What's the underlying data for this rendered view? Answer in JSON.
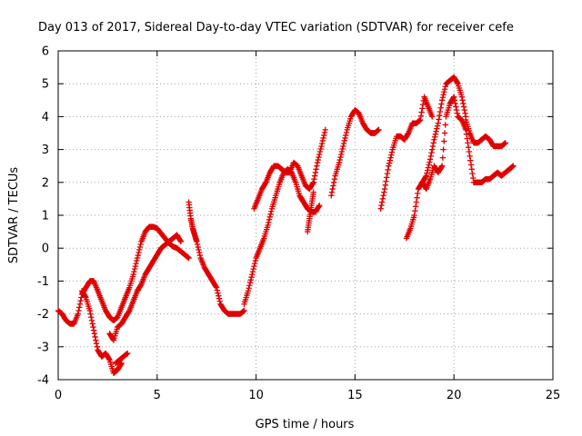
{
  "chart_data": {
    "type": "scatter",
    "title": "Day 013 of 2017, Sidereal Day-to-day VTEC variation (SDTVAR) for receiver cefe",
    "xlabel": "GPS time / hours",
    "ylabel": "SDTVAR / TECUs",
    "xlim": [
      0,
      25
    ],
    "ylim": [
      -4,
      6
    ],
    "x_ticks": [
      "0",
      "5",
      "10",
      "15",
      "20",
      "25"
    ],
    "y_ticks": [
      "-4",
      "-3",
      "-2",
      "-1",
      "0",
      "1",
      "2",
      "3",
      "4",
      "5",
      "6"
    ],
    "grid": true,
    "marker": "plus",
    "color": "#e00000",
    "series": [
      {
        "x": [
          0.0,
          0.2,
          0.4,
          0.6,
          0.8,
          1.0,
          1.2,
          1.4,
          1.6,
          1.8,
          2.0,
          2.2,
          2.4,
          2.6,
          2.8,
          3.0,
          3.2,
          3.4,
          3.6,
          3.8,
          4.0,
          4.2,
          4.4,
          4.6,
          4.8,
          5.0,
          5.2,
          5.4,
          5.6,
          5.8,
          6.0,
          6.2,
          6.4,
          6.6
        ],
        "y": [
          -1.9,
          -2.0,
          -2.2,
          -2.3,
          -2.3,
          -2.0,
          -1.4,
          -1.2,
          -1.0,
          -1.0,
          -1.3,
          -1.6,
          -1.9,
          -2.1,
          -2.2,
          -2.1,
          -1.8,
          -1.5,
          -1.2,
          -0.8,
          -0.3,
          0.2,
          0.5,
          0.65,
          0.65,
          0.6,
          0.45,
          0.3,
          0.15,
          0.05,
          0.0,
          -0.1,
          -0.2,
          -0.3
        ]
      },
      {
        "x": [
          1.2,
          1.4,
          1.6,
          1.8,
          2.0,
          2.2,
          2.4,
          2.6,
          2.8,
          3.0,
          3.2
        ],
        "y": [
          -1.3,
          -1.5,
          -1.9,
          -2.5,
          -3.1,
          -3.3,
          -3.2,
          -3.4,
          -3.8,
          -3.7,
          -3.5
        ]
      },
      {
        "x": [
          2.6,
          2.8,
          3.0,
          3.2,
          3.4,
          3.6,
          3.8,
          4.0,
          4.2,
          4.4,
          4.6,
          4.8,
          5.0,
          5.2,
          5.4,
          5.6,
          5.8,
          6.0,
          6.2
        ],
        "y": [
          -2.6,
          -2.8,
          -2.4,
          -2.3,
          -2.1,
          -1.9,
          -1.6,
          -1.3,
          -1.1,
          -0.8,
          -0.6,
          -0.4,
          -0.2,
          0.0,
          0.1,
          0.2,
          0.3,
          0.4,
          0.2
        ]
      },
      {
        "x": [
          2.9,
          3.1,
          3.3,
          3.5
        ],
        "y": [
          -3.5,
          -3.4,
          -3.3,
          -3.2
        ]
      },
      {
        "x": [
          6.6,
          6.7,
          6.8,
          6.9,
          7.0,
          7.2,
          7.4,
          7.6,
          7.8,
          8.0,
          8.2,
          8.4,
          8.6,
          8.8,
          9.0,
          9.2,
          9.4
        ],
        "y": [
          1.4,
          0.9,
          0.6,
          0.4,
          0.2,
          -0.3,
          -0.6,
          -0.8,
          -1.0,
          -1.2,
          -1.7,
          -1.9,
          -2.0,
          -2.0,
          -2.0,
          -2.0,
          -1.9
        ]
      },
      {
        "x": [
          9.4,
          9.6,
          9.8,
          10.0,
          10.2,
          10.4,
          10.6,
          10.8,
          11.0,
          11.2,
          11.4,
          11.6,
          11.8,
          12.0,
          12.2,
          12.4,
          12.6,
          12.8,
          13.0,
          13.2
        ],
        "y": [
          -1.7,
          -1.3,
          -0.8,
          -0.3,
          0.0,
          0.3,
          0.7,
          1.2,
          1.6,
          2.0,
          2.3,
          2.4,
          2.3,
          2.0,
          1.6,
          1.4,
          1.2,
          1.1,
          1.1,
          1.3
        ]
      },
      {
        "x": [
          9.9,
          10.1,
          10.3,
          10.5,
          10.7,
          10.9,
          11.1,
          11.3,
          11.5,
          11.7,
          11.9,
          12.1,
          12.3,
          12.5,
          12.7,
          12.9,
          13.1,
          13.3,
          13.5
        ],
        "y": [
          1.2,
          1.5,
          1.8,
          2.0,
          2.3,
          2.5,
          2.5,
          2.4,
          2.3,
          2.3,
          2.6,
          2.5,
          2.2,
          1.9,
          1.8,
          2.0,
          2.6,
          3.1,
          3.6
        ]
      },
      {
        "x": [
          12.6,
          12.7,
          12.8,
          12.9
        ],
        "y": [
          0.5,
          0.9,
          1.3,
          1.7
        ]
      },
      {
        "x": [
          13.8,
          14.0,
          14.2,
          14.4,
          14.6,
          14.8,
          15.0,
          15.2,
          15.4,
          15.6,
          15.8,
          16.0,
          16.2
        ],
        "y": [
          1.6,
          2.2,
          2.6,
          3.1,
          3.6,
          4.0,
          4.2,
          4.1,
          3.8,
          3.6,
          3.5,
          3.5,
          3.6
        ]
      },
      {
        "x": [
          16.3,
          16.5,
          16.7,
          16.9,
          17.1,
          17.3,
          17.5,
          17.7,
          17.9,
          18.1,
          18.3,
          18.5,
          18.7,
          18.9
        ],
        "y": [
          1.2,
          1.8,
          2.5,
          3.0,
          3.4,
          3.4,
          3.3,
          3.5,
          3.8,
          3.8,
          3.9,
          4.6,
          4.3,
          4.0
        ]
      },
      {
        "x": [
          17.6,
          17.8,
          18.0,
          18.2,
          18.4,
          18.6,
          18.8,
          19.0,
          19.2,
          19.4,
          19.6,
          19.8,
          20.0,
          20.2,
          20.4,
          20.6
        ],
        "y": [
          0.3,
          0.6,
          1.0,
          1.8,
          2.0,
          2.2,
          2.7,
          3.3,
          3.8,
          4.5,
          5.0,
          5.1,
          5.2,
          5.0,
          4.6,
          4.0
        ]
      },
      {
        "x": [
          18.4,
          18.6,
          18.8,
          19.0,
          19.2,
          19.4,
          19.6,
          19.8,
          20.0,
          20.2,
          20.4,
          20.6,
          20.8,
          21.0,
          21.2,
          21.4,
          21.6,
          21.8,
          22.0,
          22.2,
          22.4,
          22.6,
          22.8,
          23.0
        ],
        "y": [
          2.0,
          1.8,
          2.1,
          2.5,
          2.3,
          2.5,
          4.0,
          4.4,
          4.6,
          4.0,
          3.9,
          3.6,
          2.8,
          2.0,
          2.0,
          2.0,
          2.1,
          2.1,
          2.2,
          2.3,
          2.2,
          2.3,
          2.4,
          2.5
        ]
      },
      {
        "x": [
          20.6,
          20.8,
          21.0,
          21.2,
          21.4,
          21.6,
          21.8,
          22.0,
          22.2,
          22.4,
          22.6
        ],
        "y": [
          3.9,
          3.5,
          3.2,
          3.2,
          3.3,
          3.4,
          3.3,
          3.1,
          3.1,
          3.1,
          3.2
        ]
      }
    ]
  }
}
